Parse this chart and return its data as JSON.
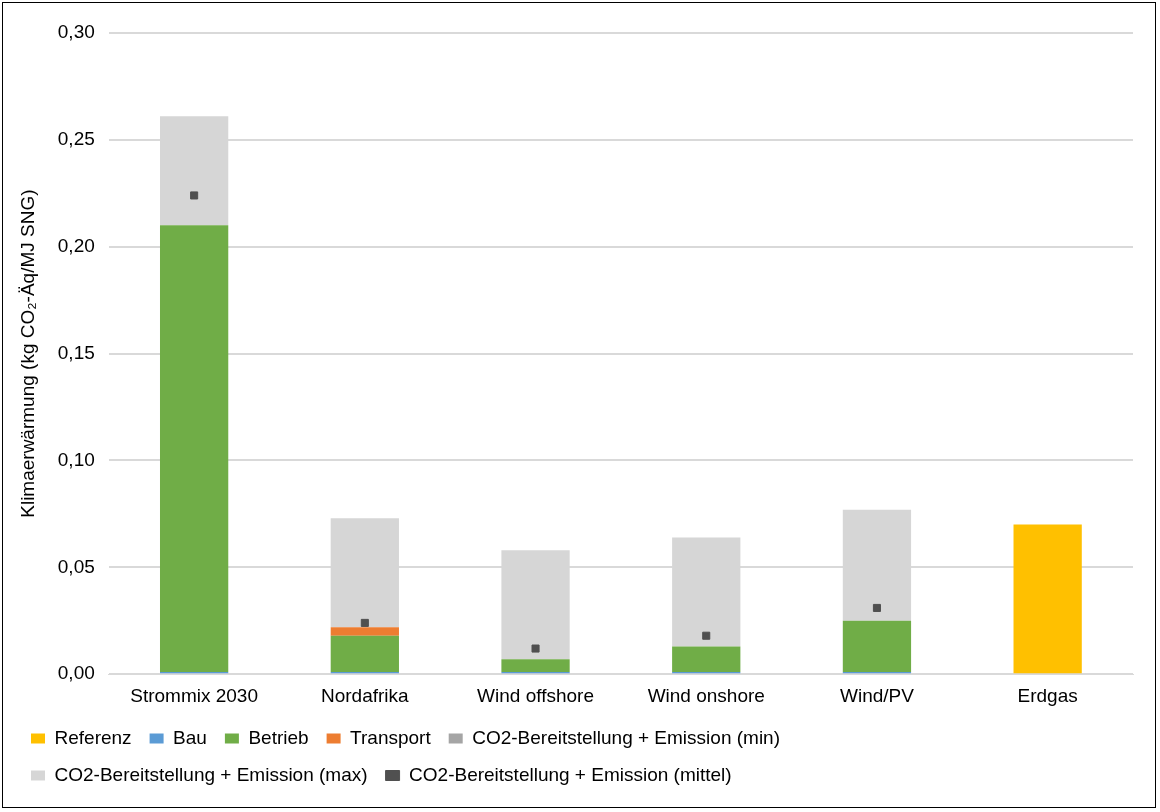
{
  "chart_data": {
    "type": "bar",
    "stacked": true,
    "ylabel": "Klimaerwärmung (kg CO₂-Äq/MJ SNG)",
    "categories": [
      "Strommix 2030",
      "Nordafrika",
      "Wind offshore",
      "Wind onshore",
      "Wind/PV",
      "Erdgas"
    ],
    "series": [
      {
        "name": "Referenz",
        "color": "#ffc000",
        "values": [
          null,
          null,
          null,
          null,
          null,
          0.07
        ]
      },
      {
        "name": "Bau",
        "color": "#5b9bd5",
        "values": [
          0.001,
          0.001,
          0.001,
          0.001,
          0.001,
          null
        ]
      },
      {
        "name": "Betrieb",
        "color": "#70ad47",
        "values": [
          0.209,
          0.017,
          0.006,
          0.012,
          0.024,
          null
        ]
      },
      {
        "name": "Transport",
        "color": "#ed7d31",
        "values": [
          null,
          0.004,
          null,
          null,
          null,
          null
        ]
      },
      {
        "name": "CO2-Bereitstellung + Emission (min)",
        "color": "#a5a5a5",
        "values": [
          0,
          0,
          0,
          0,
          0,
          null
        ]
      },
      {
        "name": "CO2-Bereitstellung + Emission (max)",
        "color": "#d6d6d6",
        "values": [
          0.051,
          0.051,
          0.051,
          0.051,
          0.052,
          null
        ]
      },
      {
        "name": "CO2-Bereitstellung + Emission (mittel)",
        "type": "scatter",
        "marker": "square",
        "color": "#505050",
        "x": [
          "Strommix 2030",
          "Nordafrika",
          "Wind offshore",
          "Wind onshore",
          "Wind/PV"
        ],
        "values": [
          0.224,
          0.024,
          0.012,
          0.018,
          0.031
        ]
      }
    ],
    "ylim": [
      0,
      0.3
    ],
    "yticks": [
      {
        "value": 0,
        "label": "0,00"
      },
      {
        "value": 0.05,
        "label": "0,05"
      },
      {
        "value": 0.1,
        "label": "0,10"
      },
      {
        "value": 0.15,
        "label": "0,15"
      },
      {
        "value": 0.2,
        "label": "0,20"
      },
      {
        "value": 0.25,
        "label": "0,25"
      },
      {
        "value": 0.3,
        "label": "0,30"
      }
    ],
    "grid": "y",
    "legend": "bottom"
  }
}
